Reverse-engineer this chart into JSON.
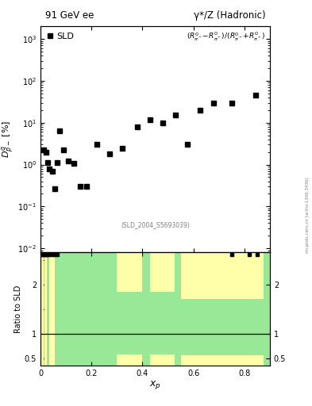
{
  "title_left": "91 GeV ee",
  "title_right": "γ*/Z (Hadronic)",
  "ylabel_main": "$D^{q}_{p-}$ [%]",
  "ylabel_ratio": "Ratio to SLD",
  "xlabel": "$x_p$",
  "formula": "$(R^{0}_{\\pi^-}\\!-\\!R^{0}_{\\pi^+})/(R^{0}_{\\pi^-}\\!+\\!R^{0}_{\\pi^+})$",
  "ref_label": "(SLD_2004_S5693039)",
  "legend_label": "SLD",
  "sld_x": [
    0.013,
    0.02,
    0.028,
    0.035,
    0.045,
    0.055,
    0.065,
    0.075,
    0.09,
    0.11,
    0.13,
    0.155,
    0.18,
    0.22,
    0.27,
    0.32,
    0.38,
    0.43,
    0.48,
    0.53,
    0.575,
    0.625,
    0.68,
    0.75,
    0.845
  ],
  "sld_y": [
    2.2,
    2.0,
    1.1,
    0.8,
    0.7,
    0.27,
    1.1,
    6.5,
    2.2,
    1.2,
    1.05,
    0.3,
    0.3,
    3.0,
    1.8,
    2.5,
    8.0,
    12.0,
    10.0,
    15.0,
    3.0,
    20.0,
    30.0,
    30.0,
    45.0
  ],
  "xlim": [
    0.0,
    0.9
  ],
  "ylim_main_log": [
    0.008,
    2000
  ],
  "ylim_ratio": [
    0.35,
    2.65
  ],
  "background_color": "#ffffff",
  "green_color": "#98e898",
  "yellow_color": "#ffffaa",
  "ratio_dots_x": [
    0.005,
    0.01,
    0.013,
    0.018,
    0.022,
    0.028,
    0.035,
    0.045,
    0.055,
    0.065,
    0.75,
    0.82,
    0.85
  ],
  "marker_color": "black",
  "marker_size": 4,
  "watermark": "mcplots.cern.ch [arXiv:1306.3436]"
}
